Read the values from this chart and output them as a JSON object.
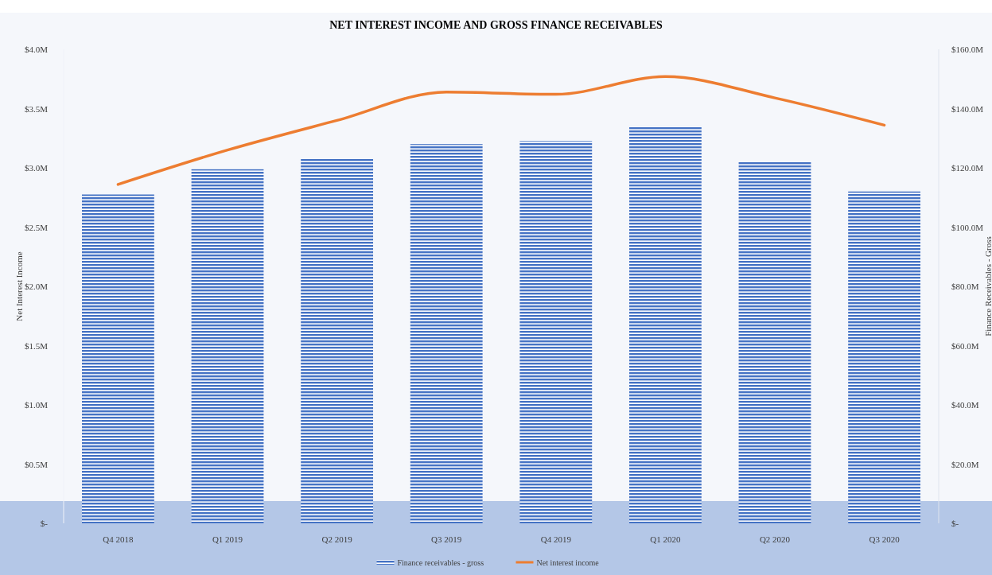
{
  "chart_data": {
    "type": "bar",
    "title": "NET INTEREST INCOME AND GROSS FINANCE RECEIVABLES",
    "ylabel": "Net Interest Income",
    "y2label": "Finance Receivables - Gross",
    "categories": [
      "Q4 2018",
      "Q1 2019",
      "Q2 2019",
      "Q3 2019",
      "Q4 2019",
      "Q1 2020",
      "Q2 2020",
      "Q3 2020"
    ],
    "series": [
      {
        "name": "Finance receivables - gross",
        "axis": "y2",
        "color": "#4472c4",
        "values": [
          111,
          119.5,
          123,
          128,
          129,
          134,
          122,
          112
        ]
      },
      {
        "name": "Net interest income",
        "type": "line",
        "axis": "y",
        "color": "#ed7d31",
        "values": [
          2.86,
          3.15,
          3.4,
          3.64,
          3.62,
          3.77,
          3.59,
          3.36
        ]
      }
    ],
    "ylim": [
      0,
      4
    ],
    "yticks": [
      {
        "value": 0,
        "label": "$-"
      },
      {
        "value": 0.5,
        "label": "$0.5M"
      },
      {
        "value": 1,
        "label": "$1.0M"
      },
      {
        "value": 1.5,
        "label": "$1.5M"
      },
      {
        "value": 2,
        "label": "$2.0M"
      },
      {
        "value": 2.5,
        "label": "$2.5M"
      },
      {
        "value": 3,
        "label": "$3.0M"
      },
      {
        "value": 3.5,
        "label": "$3.5M"
      },
      {
        "value": 4,
        "label": "$4.0M"
      }
    ],
    "y2lim": [
      0,
      160
    ],
    "y2ticks": [
      {
        "value": 0,
        "label": "$-"
      },
      {
        "value": 20,
        "label": "$20.0M"
      },
      {
        "value": 40,
        "label": "$40.0M"
      },
      {
        "value": 60,
        "label": "$60.0M"
      },
      {
        "value": 80,
        "label": "$80.0M"
      },
      {
        "value": 100,
        "label": "$100.0M"
      },
      {
        "value": 120,
        "label": "$120.0M"
      },
      {
        "value": 140,
        "label": "$140.0M"
      },
      {
        "value": 160,
        "label": "$160.0M"
      }
    ],
    "grid": false,
    "legend": "bottom",
    "marker": "none",
    "line_style": "solid"
  }
}
